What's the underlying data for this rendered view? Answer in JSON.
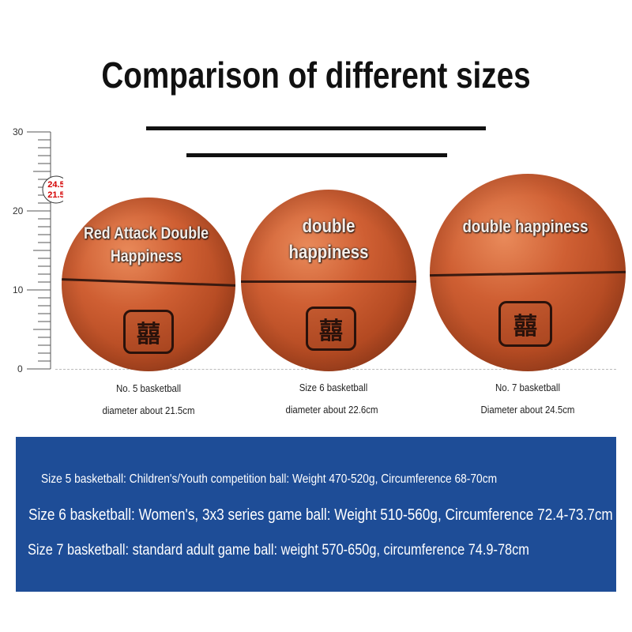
{
  "title": "Comparison of different sizes",
  "ruler": {
    "ticks": [
      "30",
      "20",
      "10",
      "0"
    ],
    "marker_top": "24.5",
    "marker_bottom": "21.5"
  },
  "balls": [
    {
      "overlay": "Red Attack Double Happiness",
      "caption_1": "No. 5 basketball",
      "caption_2": "diameter about 21.5cm"
    },
    {
      "overlay": "double happiness",
      "caption_1": "Size 6 basketball",
      "caption_2": "diameter about 22.6cm"
    },
    {
      "overlay": "double happiness",
      "caption_1": "No. 7 basketball",
      "caption_2": "Diameter about 24.5cm"
    }
  ],
  "logo_glyph": "囍",
  "specs": [
    "Size 5 basketball: Children's/Youth competition ball: Weight 470-520g, Circumference 68-70cm",
    "Size 6 basketball: Women's, 3x3 series game ball: Weight 510-560g, Circumference 72.4-73.7cm",
    "Size 7 basketball: standard adult game ball: weight 570-650g, circumference 74.9-78cm"
  ],
  "colors": {
    "panel": "#1e4d97",
    "ball": "#c85a30"
  }
}
